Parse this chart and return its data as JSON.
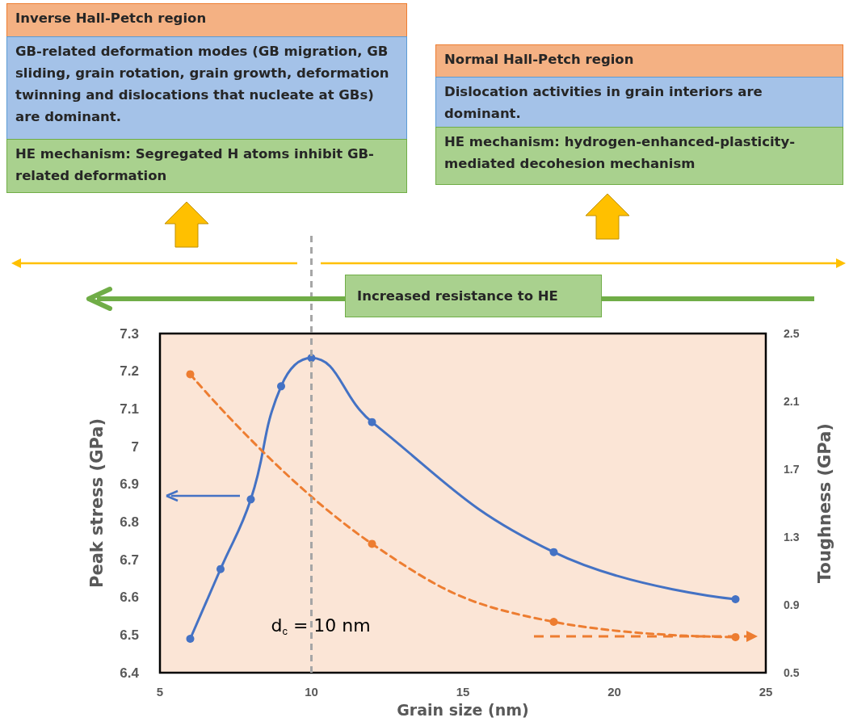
{
  "chart_data": {
    "type": "line",
    "xlabel": "Grain size (nm)",
    "ylabel": "Peak stress (GPa)",
    "y2label": "Toughness (GPa)",
    "xlim": [
      5,
      25
    ],
    "xticks": [
      5,
      10,
      15,
      20,
      25
    ],
    "ylim": [
      6.4,
      7.3
    ],
    "yticks": [
      6.4,
      6.5,
      6.6,
      6.7,
      6.8,
      6.9,
      7,
      7.1,
      7.2,
      7.3
    ],
    "y2lim": [
      0.5,
      2.5
    ],
    "y2ticks": [
      0.5,
      0.9,
      1.3,
      1.7,
      2.1,
      2.5
    ],
    "series": [
      {
        "color": "#4472c4",
        "line_style": "solid",
        "x": [
          6,
          7,
          8,
          9,
          10,
          12,
          18,
          24
        ],
        "values": [
          6.49,
          6.675,
          6.86,
          7.16,
          7.235,
          7.065,
          6.72,
          6.595
        ]
      },
      {
        "color": "#ed7d31",
        "line_style": "dashed",
        "axis": "y2",
        "x": [
          6,
          12,
          18,
          24
        ],
        "values": [
          2.26,
          1.26,
          0.8,
          0.71
        ]
      }
    ],
    "marker": "circle",
    "grid": false,
    "ref_lines": [
      {
        "axis": "x",
        "value": 10,
        "label": "d$_{c}$ = 10 nm",
        "color": "#a6a6a6",
        "line_style": "dashed"
      }
    ],
    "annotations": [
      "Inverse Hall-Petch region",
      "GB-related deformation modes (GB migration, GB sliding, grain rotation, grain growth, deformation twinning and dislocations that nucleate at GBs) are dominant.",
      "HE mechanism: Segregated H atoms inhibit GB-related deformation",
      "Normal Hall-Petch region",
      "Dislocation activities in grain interiors are dominant.",
      "HE mechanism: hydrogen-enhanced-plasticity-mediated decohesion mechanism",
      "Increased resistance to HE"
    ]
  }
}
